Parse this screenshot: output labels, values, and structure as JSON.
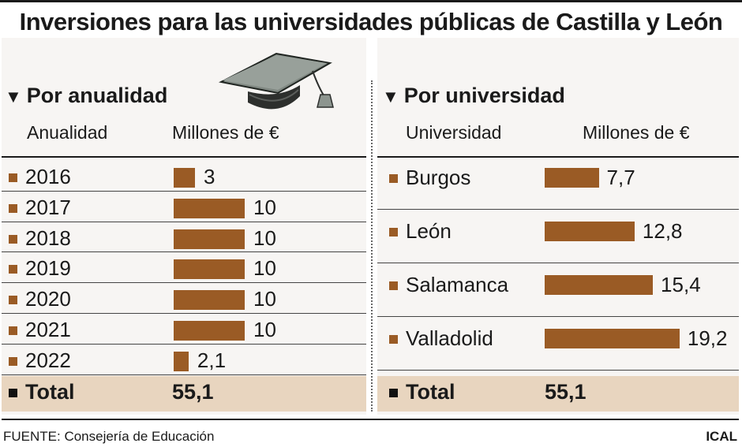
{
  "title": "Inversiones para las universidades públicas de Castilla y León",
  "left": {
    "heading": "Por anualidad",
    "col1": "Anualidad",
    "col2": "Millones de €",
    "total_label": "Total",
    "total_value": "55,1"
  },
  "right": {
    "heading": "Por universidad",
    "col1": "Universidad",
    "col2": "Millones de €",
    "total_label": "Total",
    "total_value": "55,1"
  },
  "footer": {
    "source": "FUENTE: Consejería de Educación",
    "credit": "ICAL"
  },
  "colors": {
    "bar": "#9a5b25",
    "total_band": "#e8d5bf"
  },
  "icons": [
    "graduation-cap-icon",
    "triangle-down-icon"
  ],
  "chart_data": [
    {
      "type": "bar",
      "title": "Por anualidad",
      "xlabel": "Anualidad",
      "ylabel": "Millones de €",
      "categories": [
        "2016",
        "2017",
        "2018",
        "2019",
        "2020",
        "2021",
        "2022"
      ],
      "values": [
        3,
        10,
        10,
        10,
        10,
        10,
        2.1
      ],
      "value_labels": [
        "3",
        "10",
        "10",
        "10",
        "10",
        "10",
        "2,1"
      ],
      "orientation": "horizontal"
    },
    {
      "type": "bar",
      "title": "Por universidad",
      "xlabel": "Universidad",
      "ylabel": "Millones de €",
      "categories": [
        "Burgos",
        "León",
        "Salamanca",
        "Valladolid"
      ],
      "values": [
        7.7,
        12.8,
        15.4,
        19.2
      ],
      "value_labels": [
        "7,7",
        "12,8",
        "15,4",
        "19,2"
      ],
      "orientation": "horizontal"
    }
  ]
}
